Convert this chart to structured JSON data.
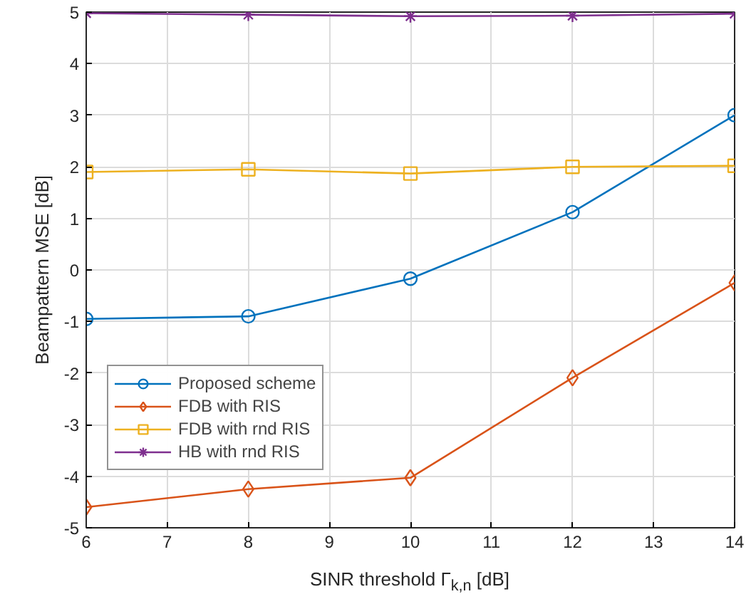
{
  "chart_data": {
    "type": "line",
    "xlabel": "SINR threshold Γ$_{k,n}$ [dB]",
    "ylabel": "Beampattern MSE [dB]",
    "x": [
      6,
      8,
      10,
      12,
      14
    ],
    "series": [
      {
        "name": "Proposed scheme",
        "color": "#0072bd",
        "marker": "circle",
        "values": [
          -0.95,
          -0.9,
          -0.17,
          1.12,
          3.0
        ]
      },
      {
        "name": "FDB with RIS",
        "color": "#d95319",
        "marker": "diamond",
        "values": [
          -4.6,
          -4.25,
          -4.03,
          -2.09,
          -0.25
        ]
      },
      {
        "name": "FDB with rnd RIS",
        "color": "#edb120",
        "marker": "square",
        "values": [
          1.9,
          1.95,
          1.87,
          2.0,
          2.02
        ]
      },
      {
        "name": "HB with rnd RIS",
        "color": "#7e2f8e",
        "marker": "cross",
        "values": [
          4.98,
          4.95,
          4.92,
          4.93,
          4.97
        ]
      }
    ],
    "xlim": [
      6,
      14
    ],
    "ylim": [
      -5,
      5
    ],
    "xticks": [
      6,
      7,
      8,
      9,
      10,
      11,
      12,
      13,
      14
    ],
    "yticks": [
      -5,
      -4,
      -3,
      -2,
      -1,
      0,
      1,
      2,
      3,
      4,
      5
    ],
    "grid": true,
    "legend": "bottom left",
    "line_style": "solid"
  }
}
